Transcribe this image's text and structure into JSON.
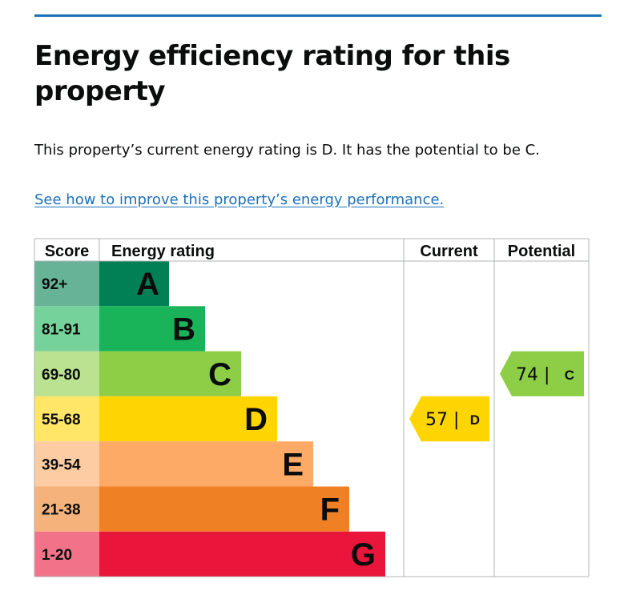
{
  "heading": "Energy efficiency rating for this property",
  "summary": "This property’s current energy rating is D. It has the potential to be C.",
  "improve_link": "See how to improve this property’s energy performance.",
  "colors": {
    "link": "#1d70b8",
    "rule": "#1d70b8",
    "border": "#b1b4b6"
  },
  "chart_data": {
    "type": "bar",
    "headers": {
      "score": "Score",
      "rating": "Energy rating",
      "current": "Current",
      "potential": "Potential"
    },
    "bands": [
      {
        "letter": "A",
        "range": "92+",
        "color": "#008054",
        "tint": "#66b398"
      },
      {
        "letter": "B",
        "range": "81-91",
        "color": "#19b459",
        "tint": "#75d29b"
      },
      {
        "letter": "C",
        "range": "69-80",
        "color": "#8dce46",
        "tint": "#bbe290"
      },
      {
        "letter": "D",
        "range": "55-68",
        "color": "#ffd500",
        "tint": "#ffe666"
      },
      {
        "letter": "E",
        "range": "39-54",
        "color": "#fcaa65",
        "tint": "#fdcca3"
      },
      {
        "letter": "F",
        "range": "21-38",
        "color": "#ef8023",
        "tint": "#f5b37b"
      },
      {
        "letter": "G",
        "range": "1-20",
        "color": "#e9153b",
        "tint": "#f27389"
      }
    ],
    "current": {
      "score": 57,
      "letter": "D",
      "label": "57 |",
      "color": "#ffd500"
    },
    "potential": {
      "score": 74,
      "letter": "C",
      "label": "74 |",
      "color": "#8dce46"
    }
  }
}
